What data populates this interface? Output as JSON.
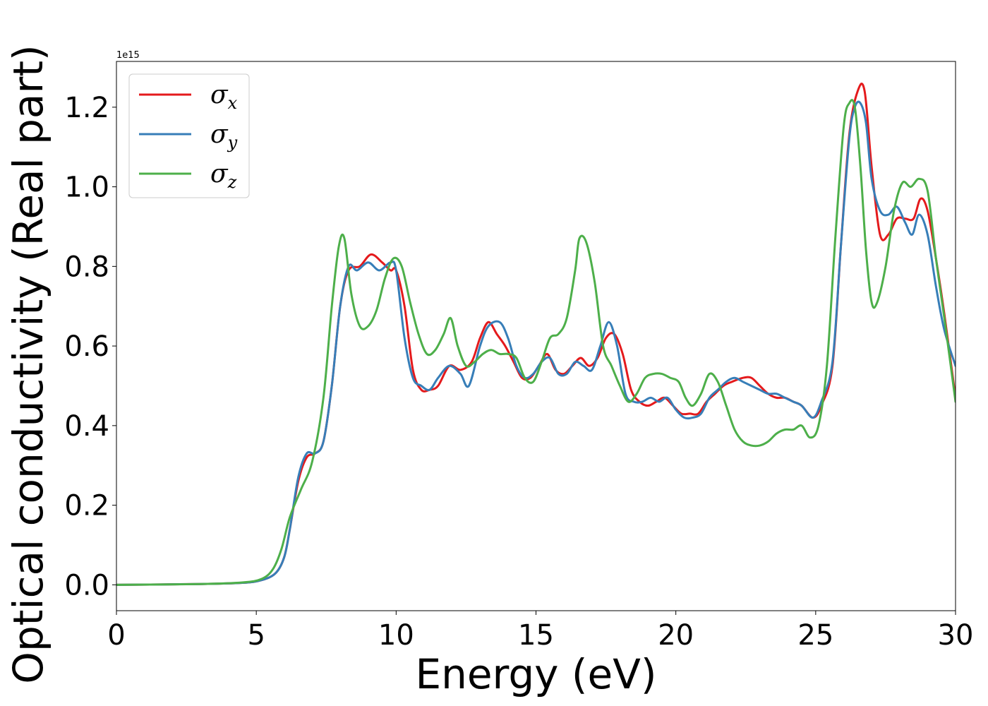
{
  "chart_data": {
    "type": "line",
    "title": "",
    "xlabel": "Energy (eV)",
    "ylabel": "Optical conductivity (Real part)",
    "y_offset_label": "1e15",
    "xlim": [
      0,
      30
    ],
    "ylim": [
      -0.065,
      1.315
    ],
    "x_ticks": [
      0,
      5,
      10,
      15,
      20,
      25,
      30
    ],
    "x_tick_labels": [
      "0",
      "5",
      "10",
      "15",
      "20",
      "25",
      "30"
    ],
    "y_ticks": [
      0.0,
      0.2,
      0.4,
      0.6,
      0.8,
      1.0,
      1.2
    ],
    "y_tick_labels": [
      "0.0",
      "0.2",
      "0.4",
      "0.6",
      "0.8",
      "1.0",
      "1.2"
    ],
    "grid": false,
    "legend_position": "upper-left",
    "series": [
      {
        "name": "σx",
        "legend_base": "σ",
        "legend_sub": "x",
        "color": "#e41a1c",
        "x": [
          0,
          3,
          4.5,
          5.2,
          5.7,
          6.0,
          6.2,
          6.5,
          6.8,
          7.1,
          7.4,
          7.7,
          8.0,
          8.3,
          8.7,
          9.1,
          9.5,
          9.8,
          10.0,
          10.3,
          10.6,
          10.9,
          11.2,
          11.5,
          11.9,
          12.3,
          12.7,
          13.0,
          13.3,
          13.6,
          13.9,
          14.2,
          14.5,
          14.8,
          15.1,
          15.4,
          15.7,
          16.0,
          16.3,
          16.6,
          16.9,
          17.2,
          17.5,
          17.8,
          18.1,
          18.4,
          18.7,
          19.0,
          19.3,
          19.6,
          19.9,
          20.2,
          20.5,
          20.8,
          21.1,
          21.4,
          21.7,
          22.0,
          22.4,
          22.7,
          23.0,
          23.3,
          23.6,
          23.9,
          24.2,
          24.5,
          24.9,
          25.2,
          25.6,
          25.9,
          26.2,
          26.5,
          26.75,
          27.0,
          27.3,
          27.6,
          27.9,
          28.2,
          28.5,
          28.75,
          29.0,
          29.3,
          29.6,
          30.0
        ],
        "y": [
          0.0,
          0.002,
          0.005,
          0.012,
          0.03,
          0.07,
          0.14,
          0.26,
          0.32,
          0.33,
          0.36,
          0.5,
          0.7,
          0.79,
          0.8,
          0.83,
          0.81,
          0.79,
          0.79,
          0.7,
          0.54,
          0.49,
          0.49,
          0.5,
          0.55,
          0.54,
          0.56,
          0.62,
          0.66,
          0.63,
          0.6,
          0.56,
          0.52,
          0.52,
          0.55,
          0.58,
          0.54,
          0.53,
          0.55,
          0.57,
          0.55,
          0.57,
          0.62,
          0.63,
          0.58,
          0.49,
          0.46,
          0.45,
          0.46,
          0.47,
          0.45,
          0.43,
          0.43,
          0.43,
          0.46,
          0.48,
          0.5,
          0.51,
          0.52,
          0.52,
          0.5,
          0.48,
          0.47,
          0.47,
          0.46,
          0.45,
          0.42,
          0.45,
          0.55,
          0.85,
          1.13,
          1.24,
          1.24,
          1.05,
          0.88,
          0.88,
          0.92,
          0.92,
          0.92,
          0.97,
          0.94,
          0.82,
          0.68,
          0.47
        ]
      },
      {
        "name": "σy",
        "legend_base": "σ",
        "legend_sub": "y",
        "color": "#377eb8",
        "x": [
          0,
          3,
          4.5,
          5.2,
          5.7,
          6.0,
          6.2,
          6.5,
          6.8,
          7.1,
          7.4,
          7.7,
          8.0,
          8.3,
          8.6,
          9.0,
          9.4,
          9.8,
          10.0,
          10.3,
          10.6,
          10.9,
          11.2,
          11.5,
          11.9,
          12.3,
          12.6,
          13.0,
          13.3,
          13.7,
          14.0,
          14.3,
          14.6,
          14.9,
          15.2,
          15.5,
          15.8,
          16.1,
          16.4,
          16.7,
          17.0,
          17.3,
          17.6,
          17.9,
          18.2,
          18.5,
          18.8,
          19.1,
          19.4,
          19.7,
          20.0,
          20.3,
          20.6,
          20.9,
          21.2,
          21.5,
          21.8,
          22.1,
          22.4,
          22.7,
          23.0,
          23.3,
          23.6,
          23.9,
          24.2,
          24.5,
          24.9,
          25.2,
          25.6,
          25.9,
          26.2,
          26.4,
          26.6,
          26.8,
          27.0,
          27.3,
          27.6,
          27.9,
          28.2,
          28.45,
          28.7,
          29.0,
          29.3,
          29.6,
          30.0
        ],
        "y": [
          0.0,
          0.002,
          0.005,
          0.012,
          0.03,
          0.07,
          0.14,
          0.27,
          0.33,
          0.33,
          0.36,
          0.5,
          0.7,
          0.8,
          0.79,
          0.81,
          0.79,
          0.81,
          0.79,
          0.62,
          0.52,
          0.5,
          0.49,
          0.52,
          0.55,
          0.53,
          0.5,
          0.6,
          0.65,
          0.66,
          0.62,
          0.55,
          0.52,
          0.53,
          0.56,
          0.57,
          0.53,
          0.53,
          0.56,
          0.55,
          0.54,
          0.6,
          0.66,
          0.6,
          0.48,
          0.46,
          0.46,
          0.47,
          0.46,
          0.47,
          0.44,
          0.42,
          0.42,
          0.43,
          0.47,
          0.49,
          0.51,
          0.52,
          0.51,
          0.5,
          0.49,
          0.48,
          0.48,
          0.47,
          0.46,
          0.45,
          0.42,
          0.46,
          0.56,
          0.85,
          1.12,
          1.2,
          1.21,
          1.16,
          1.02,
          0.94,
          0.93,
          0.95,
          0.91,
          0.88,
          0.93,
          0.88,
          0.75,
          0.64,
          0.55
        ]
      },
      {
        "name": "σz",
        "legend_base": "σ",
        "legend_sub": "z",
        "color": "#4daf4a",
        "x": [
          0,
          3,
          4.5,
          5.2,
          5.6,
          5.9,
          6.2,
          6.6,
          7.0,
          7.4,
          7.7,
          7.95,
          8.15,
          8.4,
          8.7,
          9.0,
          9.3,
          9.6,
          9.9,
          10.2,
          10.5,
          10.8,
          11.1,
          11.4,
          11.7,
          11.95,
          12.2,
          12.5,
          12.8,
          13.1,
          13.4,
          13.7,
          14.0,
          14.3,
          14.6,
          14.9,
          15.2,
          15.5,
          15.8,
          16.1,
          16.4,
          16.55,
          16.8,
          17.1,
          17.4,
          17.7,
          18.0,
          18.3,
          18.6,
          18.9,
          19.2,
          19.5,
          19.8,
          20.1,
          20.35,
          20.6,
          20.9,
          21.2,
          21.5,
          21.8,
          22.1,
          22.4,
          22.7,
          23.0,
          23.3,
          23.6,
          23.9,
          24.2,
          24.5,
          24.8,
          25.1,
          25.4,
          25.7,
          26.0,
          26.2,
          26.4,
          26.6,
          26.8,
          27.0,
          27.2,
          27.5,
          27.8,
          28.1,
          28.4,
          28.7,
          29.0,
          29.3,
          29.6,
          30.0
        ],
        "y": [
          0.0,
          0.002,
          0.006,
          0.015,
          0.04,
          0.09,
          0.17,
          0.24,
          0.31,
          0.47,
          0.7,
          0.85,
          0.87,
          0.73,
          0.65,
          0.65,
          0.69,
          0.77,
          0.82,
          0.8,
          0.71,
          0.63,
          0.58,
          0.59,
          0.63,
          0.67,
          0.6,
          0.55,
          0.56,
          0.58,
          0.59,
          0.58,
          0.58,
          0.57,
          0.52,
          0.51,
          0.56,
          0.62,
          0.63,
          0.67,
          0.79,
          0.87,
          0.86,
          0.76,
          0.6,
          0.55,
          0.5,
          0.46,
          0.48,
          0.52,
          0.53,
          0.53,
          0.52,
          0.51,
          0.47,
          0.45,
          0.48,
          0.53,
          0.51,
          0.45,
          0.39,
          0.36,
          0.35,
          0.35,
          0.36,
          0.38,
          0.39,
          0.39,
          0.4,
          0.37,
          0.4,
          0.55,
          0.87,
          1.15,
          1.21,
          1.2,
          1.05,
          0.84,
          0.71,
          0.71,
          0.8,
          0.94,
          1.01,
          1.0,
          1.02,
          0.99,
          0.82,
          0.67,
          0.46
        ]
      }
    ]
  }
}
